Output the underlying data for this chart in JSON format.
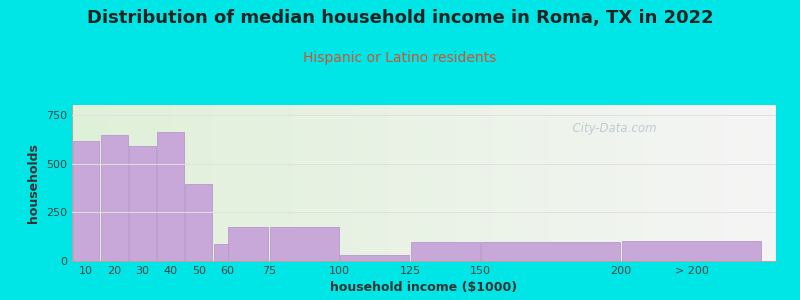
{
  "title": "Distribution of median household income in Roma, TX in 2022",
  "subtitle": "Hispanic or Latino residents",
  "xlabel": "household income ($1000)",
  "ylabel": "households",
  "bar_color": "#c8a8d8",
  "bar_edge_color": "#b898cc",
  "values": [
    615,
    645,
    590,
    660,
    395,
    85,
    175,
    175,
    30,
    95,
    100,
    105
  ],
  "bar_widths": [
    10,
    10,
    10,
    10,
    10,
    10,
    15,
    25,
    25,
    25,
    50,
    50
  ],
  "bar_lefts": [
    5,
    15,
    25,
    35,
    45,
    55,
    60,
    75,
    100,
    125,
    150,
    200
  ],
  "xtick_labels": [
    "10",
    "20",
    "30",
    "40",
    "50",
    "60",
    "75",
    "100",
    "125",
    "150",
    "200",
    "> 200"
  ],
  "xtick_positions": [
    10,
    20,
    30,
    40,
    50,
    60,
    75,
    100,
    125,
    150,
    200,
    225
  ],
  "ytick_labels": [
    "0",
    "250",
    "500",
    "750"
  ],
  "ytick_values": [
    0,
    250,
    500,
    750
  ],
  "ylim": [
    0,
    800
  ],
  "xlim": [
    5,
    255
  ],
  "outer_bg": "#00e5e5",
  "plot_bg_left": "#dff0d8",
  "plot_bg_right": "#f5f5f5",
  "title_fontsize": 13,
  "title_color": "#222222",
  "subtitle_fontsize": 10,
  "subtitle_color": "#cc5533",
  "axis_label_fontsize": 9,
  "axis_label_color": "#333333",
  "tick_label_color": "#444444",
  "watermark_text": "  City-Data.com",
  "watermark_color": "#b8c4cc",
  "grid_color": "#e0e0e0"
}
